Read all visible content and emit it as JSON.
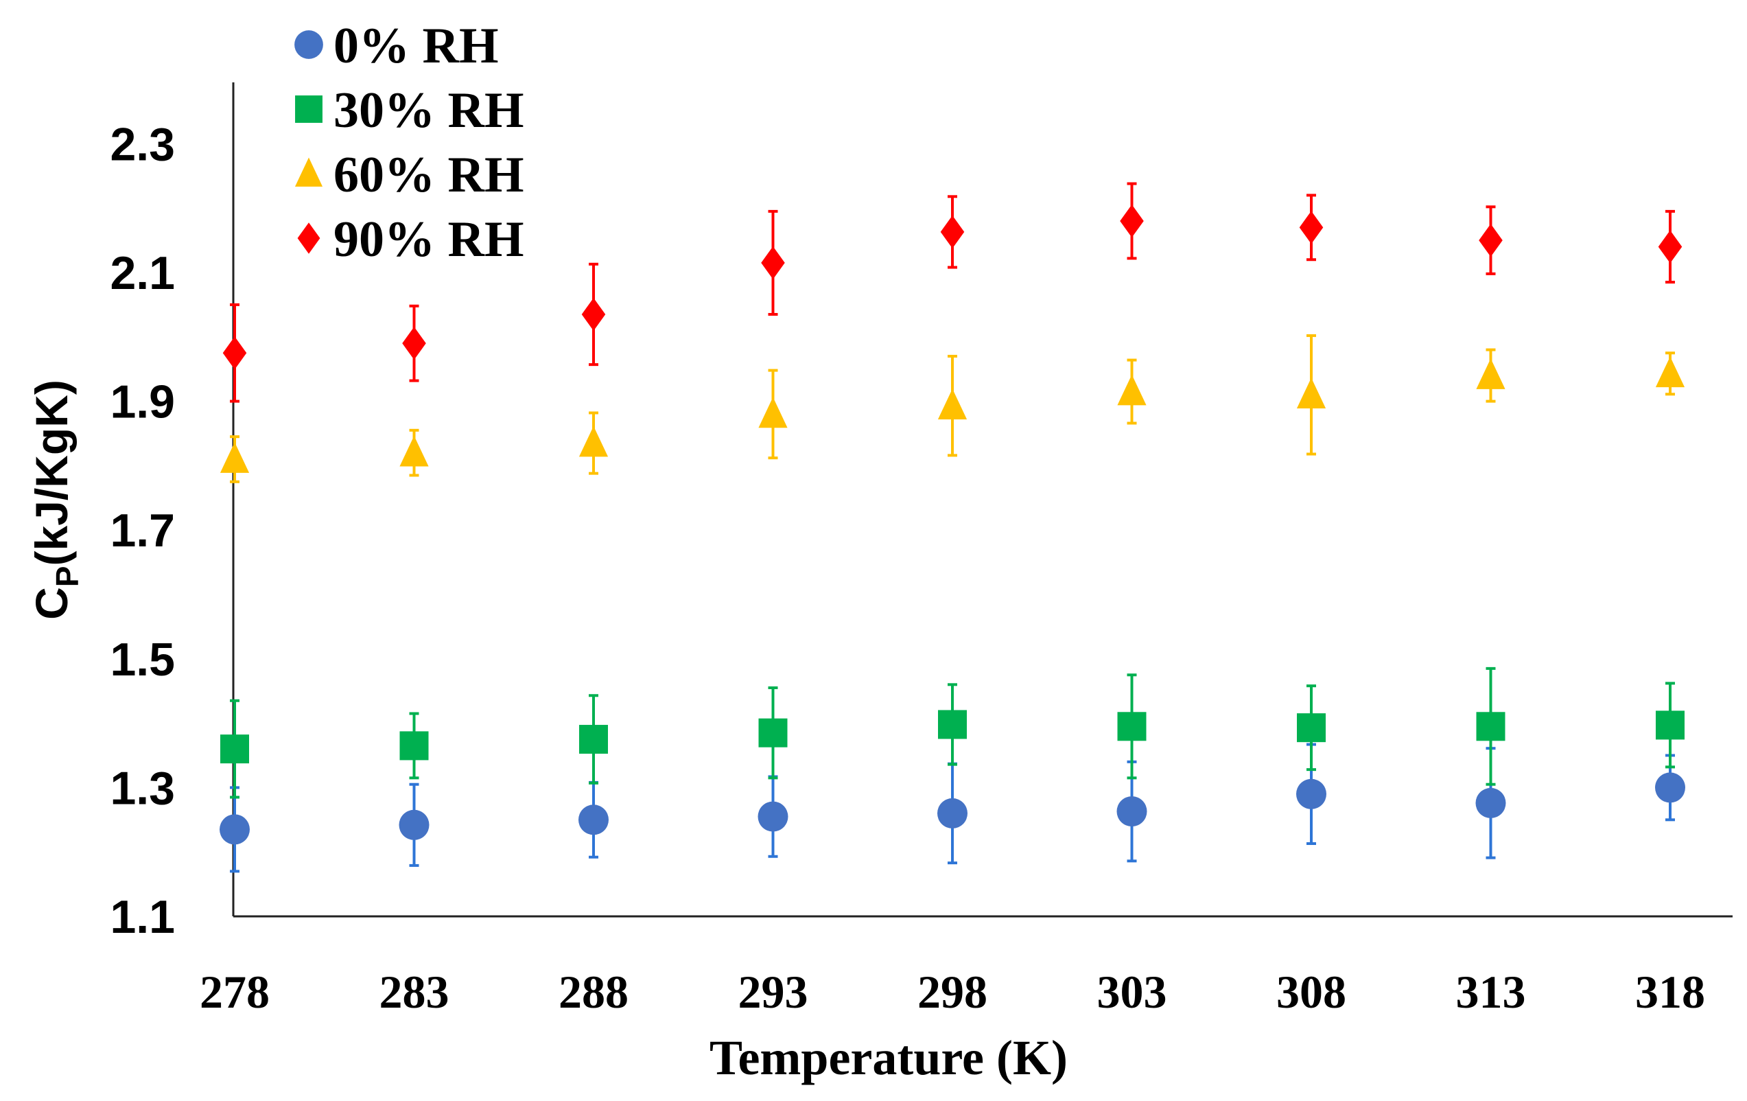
{
  "chart_data": {
    "type": "scatter",
    "title": "",
    "xlabel": "Temperature (K)",
    "ylabel": "C",
    "ylabel_sub": "P",
    "ylabel_suffix": "(kJ/KgK)",
    "x": [
      278,
      283,
      288,
      293,
      298,
      303,
      308,
      313,
      318
    ],
    "x_tick_labels": [
      "278",
      "283",
      "288",
      "293",
      "298",
      "303",
      "308",
      "313",
      "318"
    ],
    "y_tick_labels": [
      "1.1",
      "1.3",
      "1.5",
      "1.7",
      "1.9",
      "2.1",
      "2.3"
    ],
    "y_ticks": [
      1.1,
      1.3,
      1.5,
      1.7,
      1.9,
      2.1,
      2.3
    ],
    "ylim": [
      1.1,
      2.4
    ],
    "grid": false,
    "legend_position": "top-left",
    "series": [
      {
        "name": "0% RH",
        "marker": "circle",
        "color": "#4472C4",
        "error_color": "#2E75D6",
        "values": [
          1.235,
          1.242,
          1.25,
          1.255,
          1.26,
          1.263,
          1.29,
          1.276,
          1.3
        ],
        "errors": [
          0.065,
          0.063,
          0.058,
          0.062,
          0.077,
          0.077,
          0.077,
          0.085,
          0.05
        ]
      },
      {
        "name": "30% RH",
        "marker": "square",
        "color": "#00B050",
        "error_color": "#00B050",
        "values": [
          1.36,
          1.365,
          1.375,
          1.385,
          1.398,
          1.395,
          1.393,
          1.395,
          1.397
        ],
        "errors": [
          0.075,
          0.05,
          0.068,
          0.07,
          0.062,
          0.08,
          0.065,
          0.09,
          0.065
        ]
      },
      {
        "name": "60% RH",
        "marker": "triangle",
        "color": "#FFC000",
        "error_color": "#FFC000",
        "values": [
          1.81,
          1.82,
          1.835,
          1.88,
          1.893,
          1.915,
          1.91,
          1.94,
          1.943
        ],
        "errors": [
          0.035,
          0.035,
          0.047,
          0.068,
          0.077,
          0.049,
          0.092,
          0.04,
          0.032
        ]
      },
      {
        "name": "90% RH",
        "marker": "diamond",
        "color": "#FF0000",
        "error_color": "#FF0000",
        "values": [
          1.975,
          1.99,
          2.035,
          2.115,
          2.163,
          2.18,
          2.17,
          2.15,
          2.14
        ],
        "errors": [
          0.075,
          0.058,
          0.078,
          0.08,
          0.055,
          0.058,
          0.05,
          0.052,
          0.055
        ]
      }
    ]
  }
}
